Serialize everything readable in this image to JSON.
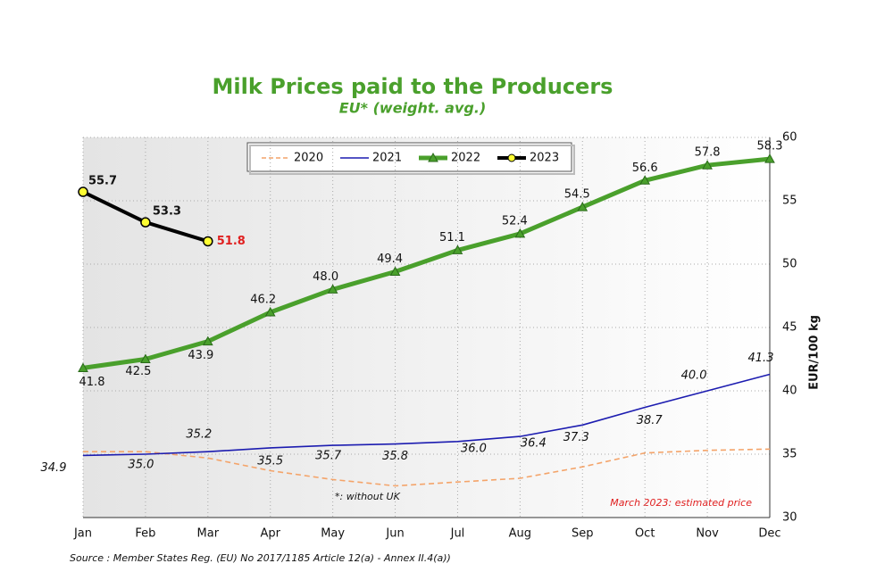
{
  "chart_data": {
    "type": "line",
    "title": "Milk Prices paid to the Producers",
    "subtitle": "EU* (weight. avg.)",
    "ylabel": "EUR/100 kg",
    "categories": [
      "Jan",
      "Feb",
      "Mar",
      "Apr",
      "May",
      "Jun",
      "Jul",
      "Aug",
      "Sep",
      "Oct",
      "Nov",
      "Dec"
    ],
    "series": [
      {
        "name": "2020",
        "color": "#f4a46a",
        "dashed": true,
        "values": [
          35.2,
          35.2,
          34.7,
          33.7,
          33.0,
          32.5,
          32.8,
          33.1,
          34.0,
          35.1,
          35.3,
          35.4
        ]
      },
      {
        "name": "2021",
        "color": "#1c1cb0",
        "values": [
          34.9,
          35.0,
          35.2,
          35.5,
          35.7,
          35.8,
          36.0,
          36.4,
          37.3,
          38.7,
          40.0,
          41.3
        ],
        "value_labels": [
          "34.9",
          "35.0",
          "35.2",
          "35.5",
          "35.7",
          "35.8",
          "36.0",
          "36.4",
          "37.3",
          "38.7",
          "40.0",
          "41.3"
        ]
      },
      {
        "name": "2022",
        "color": "#4aa02c",
        "marker": "triangle",
        "values": [
          41.8,
          42.5,
          43.9,
          46.2,
          48.0,
          49.4,
          51.1,
          52.4,
          54.5,
          56.6,
          57.8,
          58.3
        ],
        "value_labels": [
          "41.8",
          "42.5",
          "43.9",
          "46.2",
          "48.0",
          "49.4",
          "51.1",
          "52.4",
          "54.5",
          "56.6",
          "57.8",
          "58.3"
        ]
      },
      {
        "name": "2023",
        "color": "#000000",
        "marker": "circle",
        "values": [
          55.7,
          53.3,
          51.8,
          null,
          null,
          null,
          null,
          null,
          null,
          null,
          null,
          null
        ],
        "value_labels": [
          "55.7",
          "53.3",
          "51.8",
          null,
          null,
          null,
          null,
          null,
          null,
          null,
          null,
          null
        ]
      }
    ],
    "ylim": [
      30,
      60
    ],
    "yticks": [
      30,
      35,
      40,
      45,
      50,
      55,
      60
    ],
    "grid": true,
    "annotations": [
      "*: without UK",
      "March 2023: estimated price"
    ],
    "source": "Source : Member States Reg. (EU) No 2017/1185 Article 12(a) - Annex II.4(a))"
  }
}
